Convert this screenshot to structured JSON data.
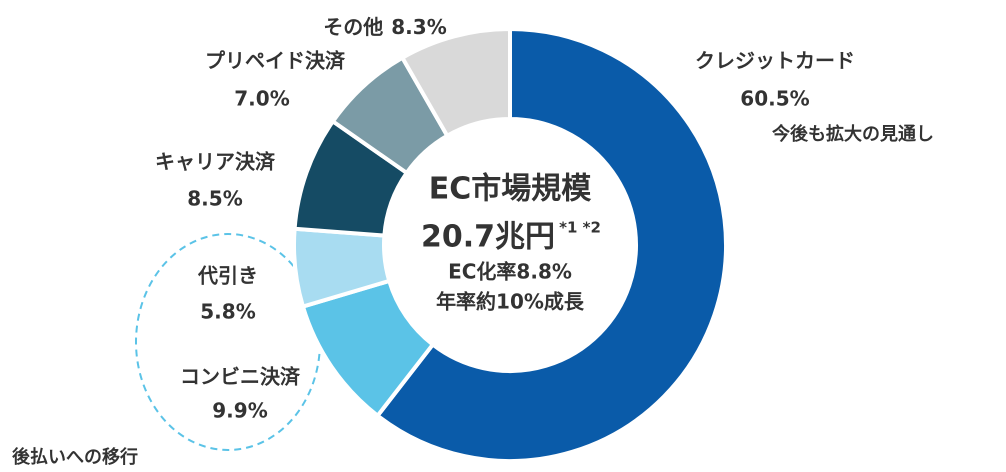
{
  "chart_data": {
    "type": "donut",
    "categories": [
      "クレジットカード",
      "コンビニ決済",
      "代引き",
      "キャリア決済",
      "プリペイド決済",
      "その他"
    ],
    "values": [
      60.5,
      9.9,
      5.8,
      8.5,
      7.0,
      8.3
    ],
    "value_labels": [
      "60.5%",
      "9.9%",
      "5.8%",
      "8.5%",
      "7.0%",
      "8.3%"
    ],
    "colors": [
      "#0a5ba9",
      "#5bc3e7",
      "#a8dcf1",
      "#154b64",
      "#7b9ba6",
      "#d9d9d9"
    ],
    "center": {
      "title": "EC市場規模",
      "value": "20.7兆円",
      "note": "*1 *2",
      "line1": "EC化率8.8%",
      "line2": "年率約10%成長"
    },
    "annotations": [
      "今後も拡大の見通し",
      "後払いへの移行"
    ]
  }
}
